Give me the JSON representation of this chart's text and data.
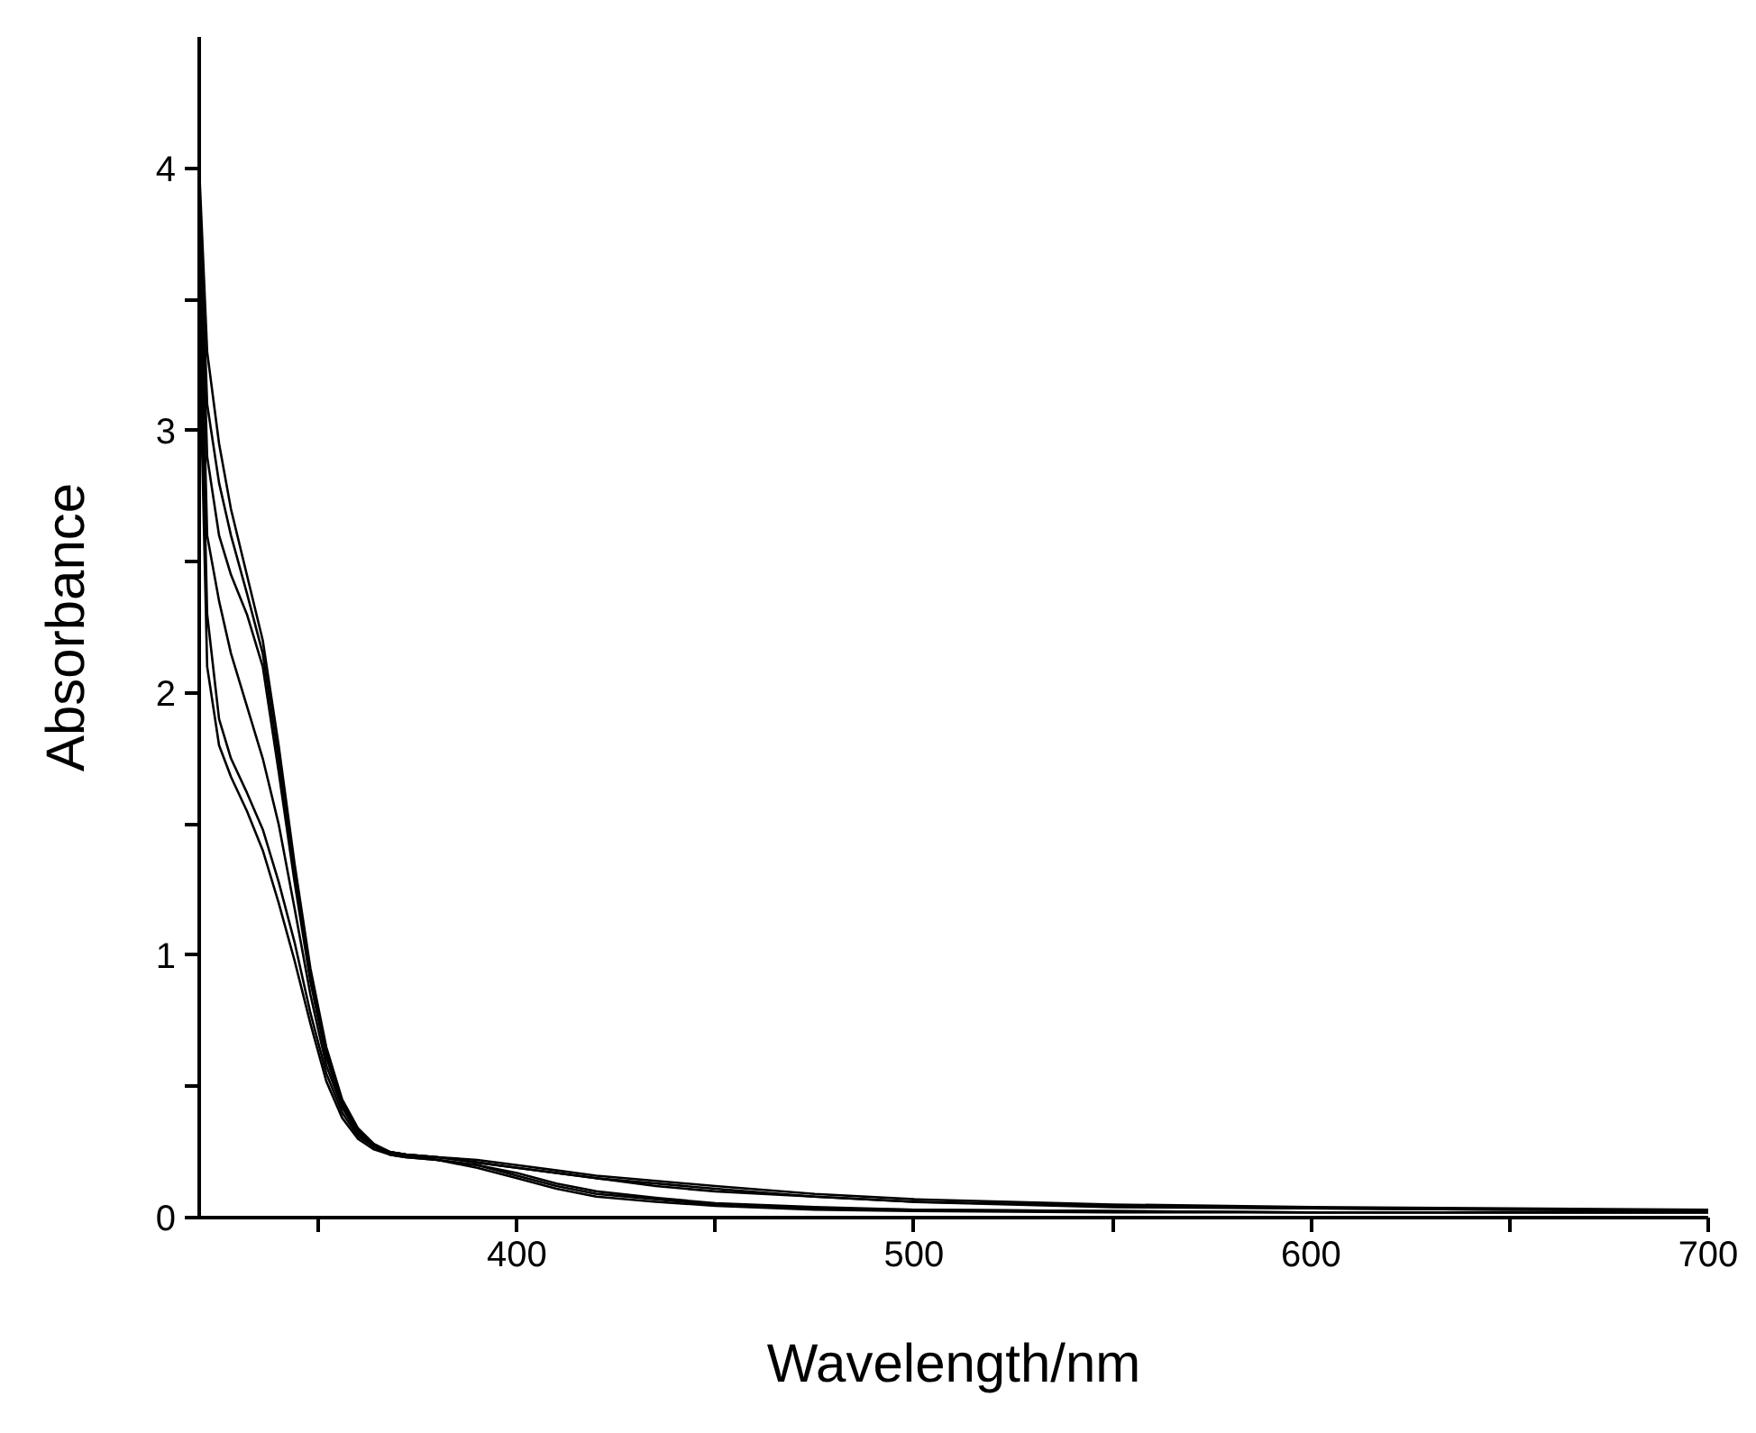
{
  "chart_data": {
    "type": "line",
    "xlabel": "Wavelength/nm",
    "ylabel": "Absorbance",
    "x": [
      320,
      322,
      325,
      328,
      332,
      336,
      340,
      344,
      348,
      352,
      356,
      360,
      364,
      368,
      372,
      380,
      390,
      400,
      410,
      420,
      435,
      450,
      475,
      500,
      550,
      600,
      650,
      700
    ],
    "series": [
      {
        "color": "#000000",
        "values": [
          4.0,
          3.3,
          2.95,
          2.7,
          2.45,
          2.2,
          1.8,
          1.35,
          0.95,
          0.65,
          0.45,
          0.34,
          0.28,
          0.25,
          0.24,
          0.23,
          0.22,
          0.2,
          0.18,
          0.16,
          0.14,
          0.12,
          0.09,
          0.07,
          0.05,
          0.04,
          0.035,
          0.03
        ]
      },
      {
        "color": "#000000",
        "values": [
          3.95,
          3.1,
          2.8,
          2.6,
          2.38,
          2.15,
          1.75,
          1.32,
          0.93,
          0.63,
          0.44,
          0.33,
          0.28,
          0.25,
          0.24,
          0.23,
          0.21,
          0.19,
          0.17,
          0.15,
          0.13,
          0.11,
          0.08,
          0.06,
          0.045,
          0.035,
          0.03,
          0.03
        ]
      },
      {
        "color": "#000000",
        "values": [
          3.9,
          2.9,
          2.6,
          2.45,
          2.3,
          2.1,
          1.7,
          1.28,
          0.9,
          0.61,
          0.43,
          0.33,
          0.27,
          0.25,
          0.24,
          0.23,
          0.21,
          0.19,
          0.17,
          0.15,
          0.12,
          0.1,
          0.08,
          0.06,
          0.04,
          0.035,
          0.03,
          0.025
        ]
      },
      {
        "color": "#000000",
        "values": [
          3.8,
          2.6,
          2.35,
          2.15,
          1.95,
          1.75,
          1.5,
          1.18,
          0.85,
          0.58,
          0.42,
          0.32,
          0.27,
          0.25,
          0.24,
          0.22,
          0.2,
          0.16,
          0.12,
          0.09,
          0.07,
          0.05,
          0.035,
          0.03,
          0.025,
          0.02,
          0.02,
          0.02
        ]
      },
      {
        "color": "#000000",
        "values": [
          3.6,
          2.3,
          1.9,
          1.75,
          1.62,
          1.48,
          1.28,
          1.05,
          0.78,
          0.55,
          0.4,
          0.31,
          0.27,
          0.24,
          0.23,
          0.22,
          0.2,
          0.17,
          0.13,
          0.1,
          0.075,
          0.055,
          0.04,
          0.03,
          0.025,
          0.02,
          0.02,
          0.02
        ]
      },
      {
        "color": "#000000",
        "values": [
          3.4,
          2.1,
          1.8,
          1.68,
          1.55,
          1.4,
          1.2,
          0.98,
          0.74,
          0.52,
          0.38,
          0.3,
          0.26,
          0.24,
          0.23,
          0.22,
          0.19,
          0.15,
          0.11,
          0.08,
          0.06,
          0.045,
          0.03,
          0.025,
          0.02,
          0.02,
          0.02,
          0.02
        ]
      }
    ],
    "xlim": [
      320,
      700
    ],
    "ylim": [
      0,
      4.5
    ],
    "xticks": [
      {
        "value": 350,
        "label": null
      },
      400,
      {
        "value": 450,
        "label": null
      },
      500,
      {
        "value": 550,
        "label": null
      },
      600,
      {
        "value": 650,
        "label": null
      },
      700
    ],
    "yticks": [
      0,
      {
        "value": 0.5,
        "label": null
      },
      1,
      {
        "value": 1.5,
        "label": null
      },
      2,
      {
        "value": 2.5,
        "label": null
      },
      3,
      {
        "value": 3.5,
        "label": null
      },
      4
    ],
    "grid": false,
    "marker": "none",
    "line_style": "solid"
  }
}
